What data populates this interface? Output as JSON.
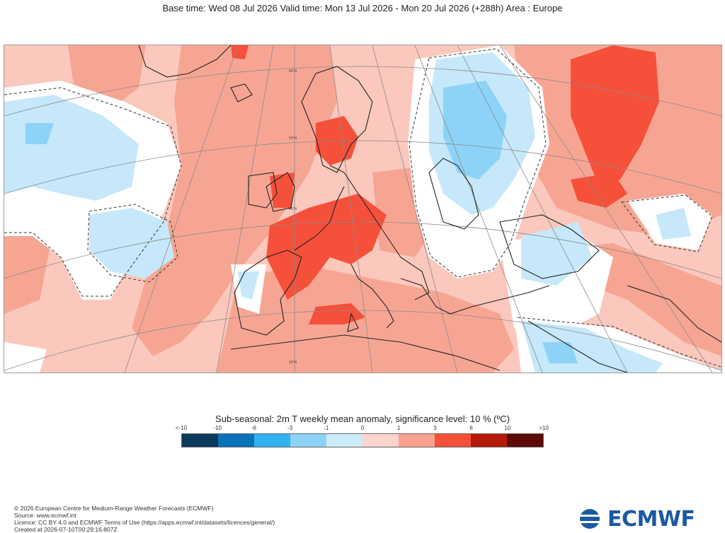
{
  "header": {
    "title": "Base time: Wed 08 Jul 2026 Valid time: Mon 13 Jul 2026 - Mon 20 Jul 2026 (+288h) Area : Europe"
  },
  "map": {
    "area": "Europe",
    "lat_labels": [
      "60°N",
      "50°N",
      "40°N",
      "30°N"
    ],
    "colors": {
      "land_outline": "#222222",
      "grid": "#8a8a8a",
      "sea_bg": "#fbc8bd"
    }
  },
  "legend": {
    "title": "Sub-seasonal: 2m T weekly mean anomaly, significance level: 10 % (ºC)",
    "ticks": [
      "<-10",
      "-10",
      "-6",
      "-3",
      "-1",
      "0",
      "1",
      "3",
      "6",
      "10",
      ">10"
    ],
    "colors": [
      "#0b3a5c",
      "#0a72b8",
      "#2fb2f2",
      "#8dd3f7",
      "#cdecfb",
      "#fdd5cc",
      "#f9a290",
      "#f5503a",
      "#b51a0a",
      "#5c0b06"
    ]
  },
  "footer": {
    "copyright": "© 2026 European Centre for Medium-Range Weather Forecasts (ECMWF)",
    "source": "Source: www.ecmwf.int",
    "licence": "Licence: CC BY 4.0 and ECMWF Terms of Use (https://apps.ecmwf.int/datasets/licences/general/)",
    "created": "Created at 2026-07-10T00:29:16.807Z"
  },
  "logo": {
    "text": "ECMWF",
    "color": "#1b5aa0"
  }
}
